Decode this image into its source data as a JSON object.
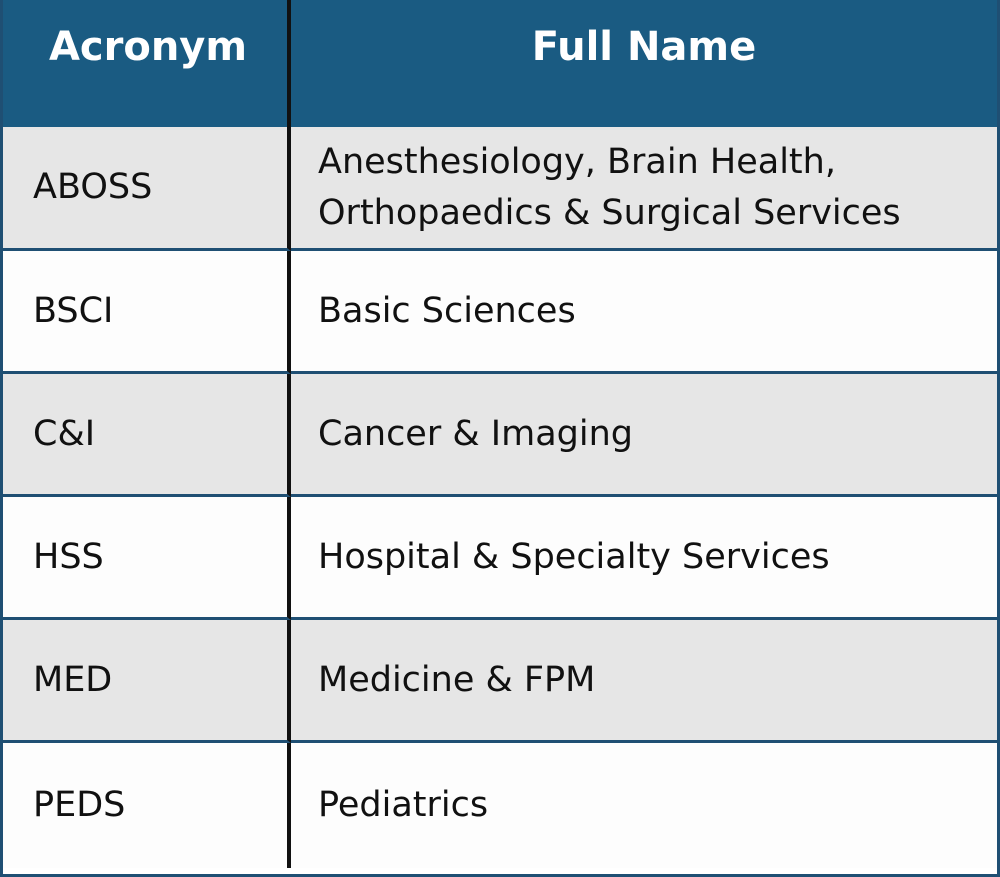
{
  "table": {
    "headers": [
      "Acronym",
      "Full Name"
    ],
    "rows": [
      {
        "acronym": "ABOSS",
        "full_name_line1": "Anesthesiology, Brain Health,",
        "full_name_line2": "Orthopaedics & Surgical Services"
      },
      {
        "acronym": "BSCI",
        "full_name_line1": "Basic Sciences"
      },
      {
        "acronym": "C&I",
        "full_name_line1": "Cancer & Imaging"
      },
      {
        "acronym": "HSS",
        "full_name_line1": "Hospital & Specialty Services"
      },
      {
        "acronym": "MED",
        "full_name_line1": "Medicine & FPM"
      },
      {
        "acronym": "PEDS",
        "full_name_line1": "Pediatrics"
      }
    ]
  },
  "colors": {
    "header_bg": "#1a5b82",
    "header_text": "#ffffff",
    "row_shaded": "#e6e6e6",
    "row_plain": "#fdfdfd",
    "grid_line": "#1f4f73"
  }
}
